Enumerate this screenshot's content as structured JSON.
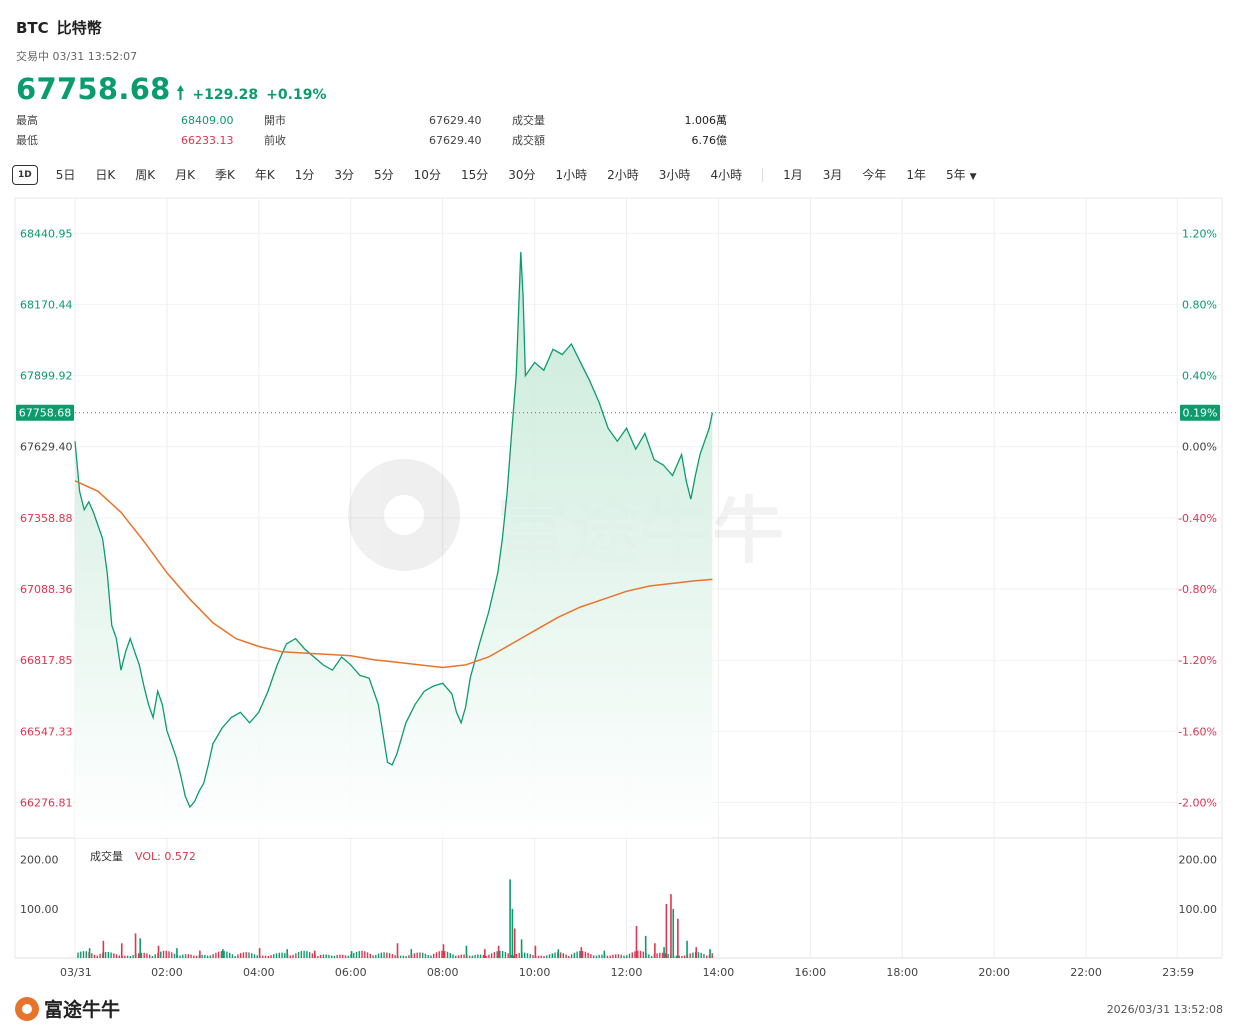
{
  "header": {
    "symbol": "BTC",
    "name": "比特幣",
    "status": "交易中 03/31 13:52:07",
    "price": "67758.68",
    "change": "+129.28",
    "change_pct": "+0.19%"
  },
  "stats": {
    "high_label": "最高",
    "high": "68409.00",
    "low_label": "最低",
    "low": "66233.13",
    "open_label": "開市",
    "open": "67629.40",
    "prev_label": "前收",
    "prev": "67629.40",
    "vol_label": "成交量",
    "vol": "1.006萬",
    "amt_label": "成交額",
    "amt": "6.76億"
  },
  "tabs": [
    "1D",
    "5日",
    "日K",
    "周K",
    "月K",
    "季K",
    "年K",
    "1分",
    "3分",
    "5分",
    "10分",
    "15分",
    "30分",
    "1小時",
    "2小時",
    "3小時",
    "4小時",
    "1月",
    "3月",
    "今年",
    "1年",
    "5年"
  ],
  "volume_panel": {
    "title": "成交量",
    "vol_label": "VOL: 0.572"
  },
  "footer": {
    "brand": "富途牛牛",
    "timestamp": "2026/03/31 13:52:08"
  },
  "watermark": "富途牛牛",
  "colors": {
    "up": "#0a9c6c",
    "down": "#e0344f",
    "avg": "#e8742b",
    "area_top": "#d6efe4"
  },
  "chart_data": {
    "type": "line",
    "x_ticks": [
      "03/31",
      "02:00",
      "04:00",
      "06:00",
      "08:00",
      "10:00",
      "12:00",
      "14:00",
      "16:00",
      "18:00",
      "20:00",
      "22:00",
      "23:59"
    ],
    "y_ticks_left": [
      "68440.95",
      "68170.44",
      "67899.92",
      "67629.40",
      "67358.88",
      "67088.36",
      "66817.85",
      "66547.33",
      "66276.81"
    ],
    "y_ticks_right": [
      "1.20%",
      "0.80%",
      "0.40%",
      "0.00%",
      "-0.40%",
      "-0.80%",
      "-1.20%",
      "-1.60%",
      "-2.00%"
    ],
    "current_price_label": "67758.68",
    "current_pct_label": "0.19%",
    "ylim": [
      66142.0,
      68575.0
    ],
    "prev_close": 67629.4,
    "price_series": [
      [
        0,
        67650
      ],
      [
        0.1,
        67460
      ],
      [
        0.2,
        67390
      ],
      [
        0.3,
        67420
      ],
      [
        0.4,
        67380
      ],
      [
        0.5,
        67330
      ],
      [
        0.6,
        67280
      ],
      [
        0.7,
        67150
      ],
      [
        0.8,
        66950
      ],
      [
        0.9,
        66900
      ],
      [
        1.0,
        66780
      ],
      [
        1.1,
        66850
      ],
      [
        1.2,
        66900
      ],
      [
        1.3,
        66850
      ],
      [
        1.4,
        66800
      ],
      [
        1.5,
        66720
      ],
      [
        1.6,
        66650
      ],
      [
        1.7,
        66600
      ],
      [
        1.8,
        66700
      ],
      [
        1.9,
        66650
      ],
      [
        2.0,
        66550
      ],
      [
        2.1,
        66500
      ],
      [
        2.2,
        66450
      ],
      [
        2.3,
        66380
      ],
      [
        2.4,
        66300
      ],
      [
        2.5,
        66260
      ],
      [
        2.6,
        66280
      ],
      [
        2.7,
        66320
      ],
      [
        2.8,
        66350
      ],
      [
        2.9,
        66420
      ],
      [
        3.0,
        66500
      ],
      [
        3.2,
        66560
      ],
      [
        3.4,
        66600
      ],
      [
        3.6,
        66620
      ],
      [
        3.8,
        66580
      ],
      [
        4.0,
        66620
      ],
      [
        4.2,
        66700
      ],
      [
        4.4,
        66800
      ],
      [
        4.6,
        66880
      ],
      [
        4.8,
        66900
      ],
      [
        5.0,
        66860
      ],
      [
        5.2,
        66830
      ],
      [
        5.4,
        66800
      ],
      [
        5.6,
        66780
      ],
      [
        5.8,
        66830
      ],
      [
        6.0,
        66800
      ],
      [
        6.2,
        66760
      ],
      [
        6.4,
        66750
      ],
      [
        6.6,
        66650
      ],
      [
        6.8,
        66430
      ],
      [
        6.9,
        66420
      ],
      [
        7.0,
        66460
      ],
      [
        7.2,
        66580
      ],
      [
        7.4,
        66650
      ],
      [
        7.6,
        66700
      ],
      [
        7.8,
        66720
      ],
      [
        8.0,
        66730
      ],
      [
        8.2,
        66690
      ],
      [
        8.3,
        66620
      ],
      [
        8.4,
        66580
      ],
      [
        8.5,
        66640
      ],
      [
        8.6,
        66750
      ],
      [
        8.8,
        66880
      ],
      [
        9.0,
        67000
      ],
      [
        9.2,
        67150
      ],
      [
        9.3,
        67280
      ],
      [
        9.4,
        67450
      ],
      [
        9.5,
        67680
      ],
      [
        9.6,
        67900
      ],
      [
        9.7,
        68370
      ],
      [
        9.75,
        68200
      ],
      [
        9.8,
        67900
      ],
      [
        10.0,
        67950
      ],
      [
        10.2,
        67920
      ],
      [
        10.4,
        68000
      ],
      [
        10.6,
        67980
      ],
      [
        10.8,
        68020
      ],
      [
        11.0,
        67950
      ],
      [
        11.2,
        67880
      ],
      [
        11.4,
        67800
      ],
      [
        11.6,
        67700
      ],
      [
        11.8,
        67650
      ],
      [
        12.0,
        67700
      ],
      [
        12.2,
        67620
      ],
      [
        12.4,
        67680
      ],
      [
        12.6,
        67580
      ],
      [
        12.8,
        67560
      ],
      [
        13.0,
        67520
      ],
      [
        13.2,
        67600
      ],
      [
        13.3,
        67500
      ],
      [
        13.4,
        67430
      ],
      [
        13.5,
        67520
      ],
      [
        13.6,
        67600
      ],
      [
        13.7,
        67650
      ],
      [
        13.8,
        67700
      ],
      [
        13.87,
        67758.68
      ]
    ],
    "avg_series": [
      [
        0,
        67500
      ],
      [
        0.5,
        67460
      ],
      [
        1.0,
        67380
      ],
      [
        1.5,
        67270
      ],
      [
        2.0,
        67150
      ],
      [
        2.5,
        67050
      ],
      [
        3.0,
        66960
      ],
      [
        3.5,
        66900
      ],
      [
        4.0,
        66870
      ],
      [
        4.5,
        66850
      ],
      [
        5.0,
        66845
      ],
      [
        5.5,
        66840
      ],
      [
        6.0,
        66835
      ],
      [
        6.5,
        66820
      ],
      [
        7.0,
        66810
      ],
      [
        7.5,
        66800
      ],
      [
        8.0,
        66790
      ],
      [
        8.5,
        66800
      ],
      [
        9.0,
        66830
      ],
      [
        9.5,
        66880
      ],
      [
        10.0,
        66930
      ],
      [
        10.5,
        66980
      ],
      [
        11.0,
        67020
      ],
      [
        11.5,
        67050
      ],
      [
        12.0,
        67080
      ],
      [
        12.5,
        67100
      ],
      [
        13.0,
        67110
      ],
      [
        13.5,
        67120
      ],
      [
        13.87,
        67125
      ]
    ],
    "volume_ylim": [
      0,
      230
    ],
    "volume_ticks": [
      "200.00",
      "100.00"
    ],
    "volume_series": [
      [
        0.3,
        20,
        "up"
      ],
      [
        0.6,
        35,
        "down"
      ],
      [
        1.0,
        30,
        "down"
      ],
      [
        1.3,
        50,
        "down"
      ],
      [
        1.4,
        40,
        "up"
      ],
      [
        1.8,
        25,
        "down"
      ],
      [
        2.2,
        20,
        "up"
      ],
      [
        2.7,
        15,
        "down"
      ],
      [
        3.2,
        18,
        "up"
      ],
      [
        4.0,
        20,
        "down"
      ],
      [
        4.6,
        18,
        "up"
      ],
      [
        5.2,
        15,
        "down"
      ],
      [
        6.0,
        14,
        "up"
      ],
      [
        7.0,
        30,
        "down"
      ],
      [
        7.3,
        18,
        "up"
      ],
      [
        8.0,
        28,
        "down"
      ],
      [
        8.5,
        25,
        "up"
      ],
      [
        8.9,
        18,
        "down"
      ],
      [
        9.2,
        25,
        "down"
      ],
      [
        9.45,
        160,
        "up"
      ],
      [
        9.5,
        100,
        "up"
      ],
      [
        9.55,
        60,
        "down"
      ],
      [
        9.7,
        38,
        "up"
      ],
      [
        10.0,
        25,
        "down"
      ],
      [
        10.5,
        18,
        "up"
      ],
      [
        11.0,
        22,
        "down"
      ],
      [
        11.5,
        15,
        "up"
      ],
      [
        12.2,
        65,
        "down"
      ],
      [
        12.4,
        45,
        "up"
      ],
      [
        12.6,
        30,
        "down"
      ],
      [
        12.8,
        22,
        "up"
      ],
      [
        12.85,
        110,
        "down"
      ],
      [
        12.95,
        130,
        "down"
      ],
      [
        13.0,
        100,
        "up"
      ],
      [
        13.1,
        80,
        "down"
      ],
      [
        13.3,
        35,
        "up"
      ],
      [
        13.5,
        22,
        "down"
      ],
      [
        13.8,
        18,
        "up"
      ]
    ],
    "x_range": [
      0,
      24
    ]
  }
}
